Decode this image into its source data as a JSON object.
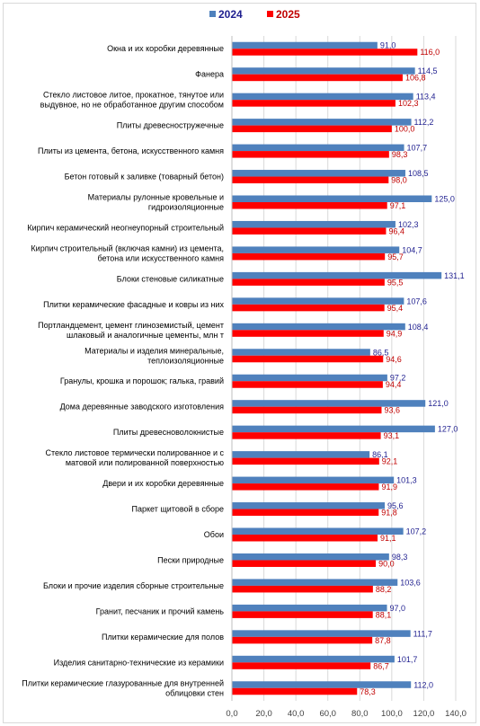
{
  "chart_data": {
    "type": "bar",
    "orientation": "horizontal",
    "legend_position": "top",
    "grid": true,
    "xlim": [
      0,
      140
    ],
    "x_ticks": [
      "0,0",
      "20,0",
      "40,0",
      "60,0",
      "80,0",
      "100,0",
      "120,0",
      "140,0"
    ],
    "series": [
      {
        "name": "2024",
        "color": "#4f81bd",
        "label_color": "#1f1f8f",
        "values": [
          91.0,
          114.5,
          113.4,
          112.2,
          107.7,
          108.5,
          125.0,
          102.3,
          104.7,
          131.1,
          107.6,
          108.4,
          86.5,
          97.2,
          121.0,
          127.0,
          86.1,
          101.3,
          95.6,
          107.2,
          98.3,
          103.6,
          97.0,
          111.7,
          101.7,
          112.0
        ],
        "labels": [
          "91,0",
          "114,5",
          "113,4",
          "112,2",
          "107,7",
          "108,5",
          "125,0",
          "102,3",
          "104,7",
          "131,1",
          "107,6",
          "108,4",
          "86,5",
          "97,2",
          "121,0",
          "127,0",
          "86,1",
          "101,3",
          "95,6",
          "107,2",
          "98,3",
          "103,6",
          "97,0",
          "111,7",
          "101,7",
          "112,0"
        ]
      },
      {
        "name": "2025",
        "color": "#ff0000",
        "label_color": "#c00000",
        "values": [
          116.0,
          106.8,
          102.3,
          100.0,
          98.3,
          98.0,
          97.1,
          96.4,
          95.7,
          95.5,
          95.4,
          94.9,
          94.6,
          94.4,
          93.6,
          93.1,
          92.1,
          91.9,
          91.8,
          91.1,
          90.0,
          88.2,
          88.1,
          87.8,
          86.7,
          78.3
        ],
        "labels": [
          "116,0",
          "106,8",
          "102,3",
          "100,0",
          "98,3",
          "98,0",
          "97,1",
          "96,4",
          "95,7",
          "95,5",
          "95,4",
          "94,9",
          "94,6",
          "94,4",
          "93,6",
          "93,1",
          "92,1",
          "91,9",
          "91,8",
          "91,1",
          "90,0",
          "88,2",
          "88,1",
          "87,8",
          "86,7",
          "78,3"
        ]
      }
    ],
    "categories": [
      [
        "Окна и их коробки деревянные"
      ],
      [
        "Фанера"
      ],
      [
        "Стекло листовое литое, прокатное, тянутое или",
        "выдувное, но не обработанное другим способом"
      ],
      [
        "Плиты древесностружечные"
      ],
      [
        "Плиты из цемента, бетона, искусственного камня"
      ],
      [
        "Бетон готовый к заливке (товарный бетон)"
      ],
      [
        "Материалы рулонные кровельные и",
        "гидроизоляционные"
      ],
      [
        "Кирпич керамический неогнеупорный строительный"
      ],
      [
        "Кирпич строительный (включая камни) из цемента,",
        "бетона или искусственного камня"
      ],
      [
        "Блоки стеновые силикатные"
      ],
      [
        "Плитки керамические фасадные и ковры из них"
      ],
      [
        "Портландцемент, цемент глиноземистый, цемент",
        "шлаковый и аналогичные цементы, млн т"
      ],
      [
        "Материалы и изделия минеральные,",
        "теплоизоляционные"
      ],
      [
        "Гранулы, крошка и порошок; галька, гравий"
      ],
      [
        "Дома деревянные заводского изготовления"
      ],
      [
        "Плиты древесноволокнистые"
      ],
      [
        "Стекло листовое термически полированное и с",
        "матовой или полированной поверхностью"
      ],
      [
        "Двери и их коробки деревянные"
      ],
      [
        "Паркет щитовой в сборе"
      ],
      [
        "Обои"
      ],
      [
        "Пески природные"
      ],
      [
        "Блоки и прочие изделия сборные строительные"
      ],
      [
        "Гранит, песчаник и прочий камень"
      ],
      [
        "Плитки керамические для полов"
      ],
      [
        "Изделия санитарно-технические из керамики"
      ],
      [
        "Плитки керамические глазурованные для внутренней",
        "облицовки стен"
      ]
    ]
  }
}
